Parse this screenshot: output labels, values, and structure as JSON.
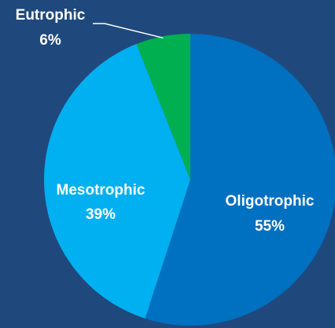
{
  "chart_data": {
    "type": "pie",
    "slices": [
      {
        "label": "Oligotrophic",
        "value": 55,
        "value_label": "55%",
        "color": "#0070c0"
      },
      {
        "label": "Mesotrophic",
        "value": 39,
        "value_label": "39%",
        "color": "#00b0f0"
      },
      {
        "label": "Eutrophic",
        "value": 6,
        "value_label": "6%",
        "color": "#00b050"
      }
    ],
    "start_angle_deg": 0,
    "direction": "clockwise",
    "background": "#1f497d",
    "label_color": "#ffffff"
  }
}
